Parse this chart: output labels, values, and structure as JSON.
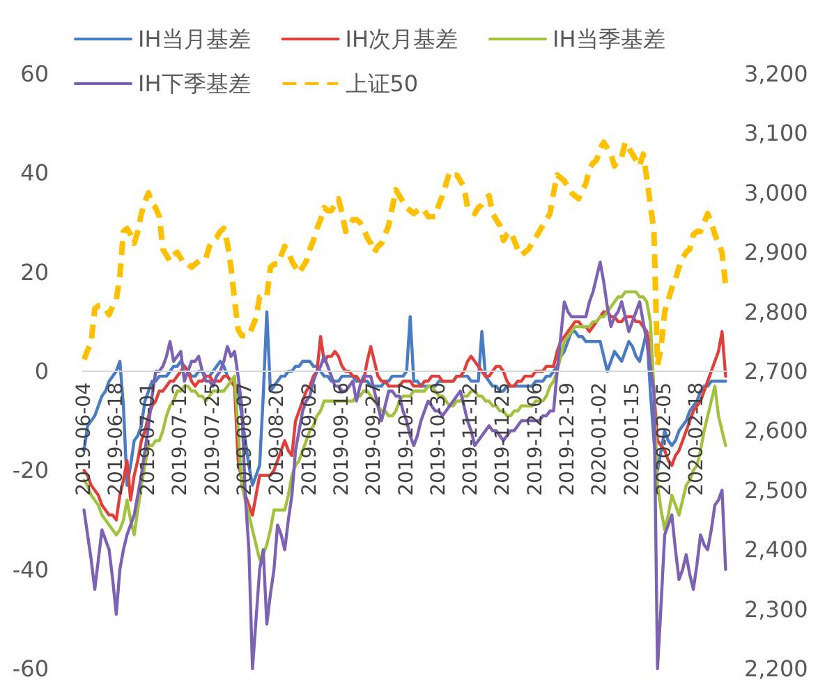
{
  "chart_data": {
    "type": "line",
    "marker": "none",
    "grid": false,
    "legend": "top left",
    "categories": [
      "2019-06-04",
      null,
      null,
      null,
      null,
      null,
      null,
      null,
      null,
      "2019-06-18",
      null,
      null,
      null,
      null,
      null,
      null,
      null,
      null,
      "2019-07-01",
      null,
      null,
      null,
      null,
      null,
      null,
      null,
      null,
      "2019-07-12",
      null,
      null,
      null,
      null,
      null,
      null,
      null,
      null,
      "2019-07-25",
      null,
      null,
      null,
      null,
      null,
      null,
      null,
      null,
      "2019-08-07",
      null,
      null,
      null,
      null,
      null,
      null,
      null,
      null,
      "2019-08-20",
      null,
      null,
      null,
      null,
      null,
      null,
      null,
      null,
      "2019-09-02",
      null,
      null,
      null,
      null,
      null,
      null,
      null,
      null,
      "2019-09-16",
      null,
      null,
      null,
      null,
      null,
      null,
      null,
      null,
      "2019-09-27",
      null,
      null,
      null,
      null,
      null,
      null,
      null,
      null,
      "2019-10-17",
      null,
      null,
      null,
      null,
      null,
      null,
      null,
      null,
      "2019-10-30",
      null,
      null,
      null,
      null,
      null,
      null,
      null,
      null,
      "2019-11-12",
      null,
      null,
      null,
      null,
      null,
      null,
      null,
      null,
      "2019-11-25",
      null,
      null,
      null,
      null,
      null,
      null,
      null,
      null,
      "2019-12-06",
      null,
      null,
      null,
      null,
      null,
      null,
      null,
      null,
      "2019-12-19",
      null,
      null,
      null,
      null,
      null,
      null,
      null,
      null,
      "2020-01-02",
      null,
      null,
      null,
      null,
      null,
      null,
      null,
      null,
      "2020-01-15",
      null,
      null,
      null,
      null,
      null,
      null,
      null,
      null,
      "2020-02-05",
      null,
      null,
      null,
      null,
      null,
      null,
      null,
      null,
      "2020-02-18",
      null,
      null,
      null,
      null,
      null,
      null,
      null,
      null
    ],
    "ylim": [
      -60,
      60
    ],
    "yticks": [
      -60,
      -40,
      -20,
      0,
      20,
      40,
      60
    ],
    "y2lim": [
      2200,
      3200
    ],
    "y2ticks": [
      {
        "value": 2200,
        "label": "2,200"
      },
      {
        "value": 2300,
        "label": "2,300"
      },
      {
        "value": 2400,
        "label": "2,400"
      },
      {
        "value": 2500,
        "label": "2,500"
      },
      {
        "value": 2600,
        "label": "2,600"
      },
      {
        "value": 2700,
        "label": "2,700"
      },
      {
        "value": 2800,
        "label": "2,800"
      },
      {
        "value": 2900,
        "label": "2,900"
      },
      {
        "value": 3000,
        "label": "3,000"
      },
      {
        "value": 3100,
        "label": "3,100"
      },
      {
        "value": 3200,
        "label": "3,200"
      }
    ],
    "series": [
      {
        "name": "IH当月基差",
        "color": "#4a7cc4",
        "values": [
          -16,
          -11,
          -10,
          -9,
          -7,
          -5,
          -4,
          -2,
          -1,
          0,
          2,
          -7,
          -23,
          -19,
          -14,
          -13,
          -11,
          -6,
          -4,
          -2,
          -2,
          -1,
          -1,
          -1,
          0,
          1,
          1,
          2,
          1,
          0,
          -1,
          -1,
          0,
          0,
          -1,
          -1,
          0,
          1,
          2,
          1,
          -1,
          -2,
          -3,
          -4,
          -9,
          -14,
          -19,
          -23,
          -21,
          -19,
          -5,
          12,
          -4,
          -3,
          -2,
          -1,
          -1,
          0,
          0,
          1,
          1,
          2,
          2,
          2,
          1,
          1,
          0,
          -1,
          -1,
          -2,
          -2,
          -2,
          -1,
          -1,
          -1,
          -1,
          -2,
          -2,
          -2,
          -2,
          -3,
          -3,
          -3,
          -3,
          -2,
          -2,
          -1,
          -1,
          -1,
          -1,
          0,
          11,
          -2,
          -2,
          -3,
          -3,
          -3,
          -3,
          -3,
          -2,
          -2,
          -2,
          -2,
          -2,
          -1,
          -1,
          -1,
          -1,
          -2,
          -2,
          -2,
          8,
          -1,
          -2,
          -3,
          -3,
          -4,
          -4,
          -3,
          -3,
          -3,
          -3,
          -3,
          -3,
          -3,
          -3,
          -2,
          -2,
          -2,
          -1,
          -1,
          0,
          1,
          3,
          4,
          6,
          8,
          8,
          7,
          7,
          6,
          6,
          6,
          6,
          6,
          3,
          0,
          2,
          4,
          3,
          2,
          4,
          6,
          5,
          3,
          2,
          5,
          8,
          -4,
          -14,
          -20,
          -16,
          -12,
          -14,
          -15,
          -14,
          -12,
          -11,
          -10,
          -8,
          -7,
          -6,
          -4,
          -3,
          -3,
          -2,
          -2,
          -2,
          -2,
          -2
        ]
      },
      {
        "name": "IH次月基差",
        "color": "#e0403c",
        "values": [
          -20,
          -21,
          -23,
          -24,
          -25,
          -27,
          -28,
          -29,
          -29,
          -30,
          -25,
          -22,
          -18,
          -26,
          -21,
          -18,
          -14,
          -12,
          -9,
          -7,
          -6,
          -4,
          -4,
          -3,
          -2,
          -2,
          -1,
          0,
          1,
          0,
          -2,
          -3,
          -2,
          -2,
          -1,
          -1,
          -2,
          -2,
          -2,
          -1,
          -1,
          -2,
          -3,
          -18,
          -22,
          -25,
          -27,
          -29,
          -25,
          -21,
          -21,
          -21,
          -21,
          -20,
          -18,
          -16,
          -14,
          -16,
          -17,
          -10,
          -8,
          -6,
          -4,
          -3,
          -1,
          0,
          7,
          2,
          3,
          3,
          4,
          3,
          1,
          0,
          0,
          -1,
          -1,
          -2,
          -2,
          2,
          5,
          2,
          -1,
          -2,
          -2,
          -3,
          -3,
          -3,
          -3,
          -2,
          -2,
          -2,
          -3,
          -3,
          -3,
          -2,
          -2,
          -1,
          -1,
          -1,
          -2,
          -2,
          -2,
          -2,
          -1,
          -1,
          0,
          2,
          3,
          2,
          1,
          0,
          -1,
          -1,
          0,
          1,
          1,
          0,
          -2,
          -3,
          -3,
          -2,
          -2,
          -1,
          -1,
          -1,
          0,
          0,
          0,
          1,
          1,
          1,
          4,
          6,
          7,
          8,
          9,
          10,
          10,
          9,
          9,
          8,
          9,
          10,
          11,
          12,
          12,
          11,
          11,
          10,
          10,
          11,
          11,
          11,
          10,
          10,
          9,
          8,
          5,
          -4,
          -14,
          -15,
          -16,
          -18,
          -19,
          -17,
          -16,
          -14,
          -12,
          -10,
          -8,
          -7,
          -6,
          -4,
          -2,
          0,
          2,
          4,
          8,
          -1
        ]
      },
      {
        "name": "IH当季基差",
        "color": "#a2c13e",
        "values": [
          -22,
          -23,
          -25,
          -26,
          -27,
          -29,
          -30,
          -31,
          -32,
          -33,
          -32,
          -30,
          -26,
          -30,
          -33,
          -28,
          -23,
          -19,
          -15,
          -15,
          -14,
          -14,
          -12,
          -9,
          -7,
          -6,
          -4,
          -4,
          -3,
          -3,
          -4,
          -4,
          -5,
          -5,
          -6,
          -5,
          -4,
          -4,
          -4,
          -4,
          -3,
          -2,
          -1,
          -12,
          -23,
          -26,
          -29,
          -32,
          -35,
          -38,
          -37,
          -35,
          -32,
          -28,
          -28,
          -28,
          -28,
          -25,
          -21,
          -19,
          -18,
          -16,
          -14,
          -12,
          -11,
          -9,
          -8,
          -6,
          -6,
          -6,
          -6,
          -6,
          -6,
          -6,
          -6,
          -6,
          -5,
          -5,
          -4,
          -4,
          -5,
          -6,
          -7,
          -8,
          -8,
          -9,
          -9,
          -8,
          -6,
          -5,
          -5,
          -5,
          -4,
          -4,
          -4,
          -4,
          -3,
          -3,
          -4,
          -5,
          -5,
          -6,
          -7,
          -7,
          -6,
          -6,
          -5,
          -5,
          -4,
          -4,
          -5,
          -5,
          -6,
          -6,
          -7,
          -7,
          -8,
          -8,
          -9,
          -9,
          -8,
          -8,
          -7,
          -7,
          -7,
          -7,
          -6,
          -6,
          -6,
          -5,
          -3,
          -2,
          0,
          3,
          6,
          7,
          8,
          9,
          9,
          9,
          9,
          9,
          10,
          10,
          11,
          11,
          12,
          13,
          14,
          15,
          15,
          16,
          16,
          16,
          16,
          15,
          15,
          14,
          10,
          -4,
          -23,
          -28,
          -32,
          -29,
          -25,
          -27,
          -29,
          -26,
          -23,
          -22,
          -20,
          -19,
          -16,
          -12,
          -9,
          -6,
          -3,
          -9,
          -12,
          -15
        ]
      },
      {
        "name": "IH下季基差",
        "color": "#7d62b4",
        "values": [
          -28,
          -33,
          -38,
          -44,
          -38,
          -32,
          -34,
          -36,
          -42,
          -49,
          -40,
          -36,
          -33,
          -31,
          -29,
          -25,
          -21,
          -16,
          -11,
          -5,
          0,
          0,
          1,
          3,
          6,
          2,
          3,
          4,
          -2,
          0,
          2,
          2,
          3,
          0,
          -2,
          -2,
          -3,
          -1,
          0,
          2,
          5,
          3,
          4,
          -1,
          -7,
          -25,
          -36,
          -60,
          -50,
          -40,
          -36,
          -51,
          -45,
          -40,
          -31,
          -33,
          -36,
          -30,
          -25,
          -16,
          -12,
          -8,
          -6,
          -5,
          -2,
          0,
          1,
          3,
          1,
          -1,
          -3,
          -3,
          -4,
          -4,
          -3,
          -2,
          -6,
          -3,
          -1,
          -1,
          -1,
          -4,
          -7,
          -10,
          -7,
          -4,
          -4,
          -5,
          -5,
          -8,
          -10,
          -13,
          -15,
          -13,
          -10,
          -8,
          -6,
          -7,
          -8,
          -8,
          -9,
          -8,
          -7,
          -6,
          -5,
          -4,
          -7,
          -10,
          -12,
          -15,
          -14,
          -13,
          -12,
          -11,
          -12,
          -12,
          -13,
          -14,
          -13,
          -12,
          -12,
          -11,
          -10,
          -10,
          -10,
          -10,
          -10,
          -10,
          -9,
          -9,
          -8,
          -8,
          0,
          7,
          14,
          12,
          11,
          11,
          11,
          11,
          11,
          14,
          16,
          19,
          22,
          18,
          13,
          9,
          11,
          12,
          14,
          11,
          8,
          10,
          12,
          14,
          10,
          6,
          1,
          -4,
          -60,
          -47,
          -33,
          -31,
          -29,
          -36,
          -42,
          -40,
          -37,
          -41,
          -44,
          -39,
          -33,
          -35,
          -36,
          -32,
          -27,
          -26,
          -24,
          -40
        ]
      },
      {
        "name": "上证50",
        "color": "#ffc000",
        "axis": "y2",
        "line_style": "dashed",
        "values": [
          2720,
          2735,
          2750,
          2805,
          2810,
          2810,
          2805,
          2795,
          2810,
          2820,
          2860,
          2935,
          2940,
          2930,
          2915,
          2935,
          2965,
          2985,
          3000,
          2980,
          2975,
          2960,
          2905,
          2895,
          2885,
          2895,
          2900,
          2890,
          2880,
          2880,
          2875,
          2880,
          2885,
          2890,
          2890,
          2910,
          2920,
          2925,
          2935,
          2940,
          2915,
          2875,
          2820,
          2770,
          2760,
          2760,
          2760,
          2775,
          2790,
          2825,
          2825,
          2825,
          2875,
          2880,
          2880,
          2895,
          2910,
          2900,
          2885,
          2875,
          2865,
          2875,
          2885,
          2905,
          2920,
          2940,
          2955,
          2975,
          2970,
          2970,
          2980,
          2990,
          2965,
          2935,
          2945,
          2955,
          2955,
          2950,
          2940,
          2925,
          2915,
          2900,
          2910,
          2915,
          2930,
          2945,
          2975,
          3005,
          2995,
          2985,
          2975,
          2970,
          2965,
          2970,
          2975,
          2970,
          2960,
          2960,
          2960,
          2980,
          2995,
          3015,
          3035,
          3030,
          3030,
          3020,
          3010,
          2975,
          2970,
          2965,
          2975,
          2980,
          2990,
          2995,
          2965,
          2955,
          2945,
          2920,
          2930,
          2935,
          2920,
          2905,
          2895,
          2900,
          2905,
          2915,
          2925,
          2935,
          2945,
          2955,
          2965,
          3000,
          3030,
          3025,
          3020,
          3010,
          3000,
          2995,
          2990,
          3005,
          3015,
          3040,
          3050,
          3055,
          3075,
          3085,
          3075,
          3065,
          3045,
          3055,
          3060,
          3085,
          3075,
          3065,
          3055,
          3045,
          3065,
          3025,
          2980,
          2935,
          2710,
          2740,
          2800,
          2820,
          2840,
          2855,
          2875,
          2890,
          2900,
          2905,
          2930,
          2935,
          2935,
          2950,
          2965,
          2950,
          2930,
          2915,
          2900,
          2845
        ]
      }
    ]
  }
}
